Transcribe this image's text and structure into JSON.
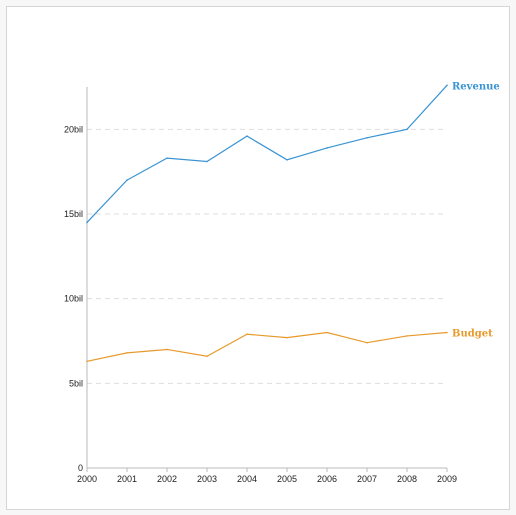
{
  "chart_data": {
    "type": "line",
    "title": "",
    "xlabel": "",
    "ylabel": "",
    "x": [
      2000,
      2001,
      2002,
      2003,
      2004,
      2005,
      2006,
      2007,
      2008,
      2009
    ],
    "x_tick_labels": [
      "2000",
      "2001",
      "2002",
      "2003",
      "2004",
      "2005",
      "2006",
      "2007",
      "2008",
      "2009"
    ],
    "y_ticks": [
      0,
      5,
      10,
      15,
      20
    ],
    "y_tick_labels": [
      "0",
      "5bil",
      "10bil",
      "15bil",
      "20bil"
    ],
    "ylim": [
      0,
      22.5
    ],
    "grid": "horizontal dashed",
    "legend": "series labels at line ends",
    "series": [
      {
        "name": "Revenue",
        "color": "#3a94d4",
        "values": [
          14.5,
          17.0,
          18.3,
          18.1,
          19.6,
          18.2,
          18.9,
          19.5,
          20.0,
          22.6
        ]
      },
      {
        "name": "Budget",
        "color": "#e79a2c",
        "values": [
          6.3,
          6.8,
          7.0,
          6.6,
          7.9,
          7.7,
          8.0,
          7.4,
          7.8,
          8.0
        ]
      }
    ]
  }
}
